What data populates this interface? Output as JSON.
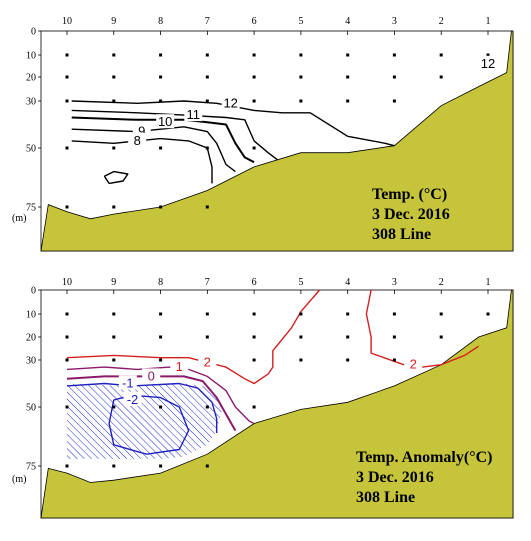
{
  "chart_data": [
    {
      "type": "contour",
      "title": "Temp. (°C)",
      "date": "3 Dec. 2016",
      "line": "308 Line",
      "colors": {
        "seabed": "#c6c43a",
        "contour": "#000000"
      },
      "stations": [
        "10",
        "9",
        "8",
        "7",
        "6",
        "5",
        "4",
        "3",
        "2",
        "1"
      ],
      "depth_ticks": [
        "0",
        "10",
        "20",
        "30",
        "50",
        "75"
      ],
      "depth_values": [
        0,
        10,
        20,
        30,
        50,
        75
      ],
      "depth_unit": "(m)",
      "ylim": [
        0,
        85
      ],
      "sample_points": [
        {
          "station": "10",
          "depths": [
            10,
            20,
            30,
            50,
            75
          ]
        },
        {
          "station": "9",
          "depths": [
            10,
            20,
            30,
            50,
            75
          ]
        },
        {
          "station": "8",
          "depths": [
            10,
            20,
            30,
            50,
            75
          ]
        },
        {
          "station": "7",
          "depths": [
            10,
            20,
            30,
            50,
            75
          ]
        },
        {
          "station": "6",
          "depths": [
            10,
            20,
            30,
            50
          ]
        },
        {
          "station": "5",
          "depths": [
            10,
            20,
            30
          ]
        },
        {
          "station": "4",
          "depths": [
            10,
            20,
            30
          ]
        },
        {
          "station": "3",
          "depths": [
            10,
            20,
            30
          ]
        },
        {
          "station": "2",
          "depths": [
            10,
            20
          ]
        },
        {
          "station": "1",
          "depths": [
            10
          ]
        }
      ],
      "contours": [
        {
          "label": "12",
          "points": [
            [
              9.9,
              30
            ],
            [
              8.5,
              31
            ],
            [
              7.5,
              30
            ],
            [
              6.8,
              31
            ],
            [
              6.0,
              34
            ],
            [
              5.4,
              35
            ],
            [
              4.8,
              35
            ],
            [
              4.0,
              45
            ],
            [
              3.2,
              48
            ],
            [
              3.0,
              49
            ]
          ]
        },
        {
          "label": "11",
          "points": [
            [
              9.9,
              34
            ],
            [
              8.5,
              35
            ],
            [
              7.5,
              36
            ],
            [
              6.6,
              37
            ],
            [
              6.2,
              38
            ],
            [
              6.0,
              47
            ],
            [
              5.7,
              52
            ],
            [
              5.5,
              55
            ]
          ]
        },
        {
          "label": "10",
          "points": [
            [
              9.9,
              37
            ],
            [
              8.5,
              38
            ],
            [
              7.5,
              38
            ],
            [
              7.0,
              39
            ],
            [
              6.6,
              40
            ],
            [
              6.4,
              48
            ],
            [
              6.2,
              54
            ],
            [
              6.0,
              56
            ]
          ]
        },
        {
          "label": "9",
          "points": [
            [
              9.9,
              42
            ],
            [
              8.5,
              43
            ],
            [
              7.5,
              41
            ],
            [
              7.0,
              43
            ],
            [
              6.8,
              48
            ],
            [
              6.6,
              57
            ],
            [
              6.4,
              60
            ]
          ]
        },
        {
          "label": "8",
          "points": [
            [
              9.9,
              47
            ],
            [
              9.0,
              48
            ],
            [
              8.0,
              46
            ],
            [
              7.4,
              47
            ],
            [
              7.0,
              50
            ],
            [
              6.9,
              58
            ],
            [
              6.9,
              65
            ]
          ]
        },
        {
          "label": "",
          "points": [
            [
              9.2,
              62
            ],
            [
              9.0,
              60
            ],
            [
              8.7,
              61
            ],
            [
              8.8,
              64
            ],
            [
              9.1,
              65
            ],
            [
              9.2,
              62
            ]
          ]
        }
      ],
      "contour_labels": [
        {
          "text": "12",
          "station_pos": 6.5,
          "depth": 31
        },
        {
          "text": "11",
          "station_pos": 7.3,
          "depth": 36
        },
        {
          "text": "10",
          "station_pos": 7.9,
          "depth": 39
        },
        {
          "text": "9",
          "station_pos": 8.4,
          "depth": 43
        },
        {
          "text": "8",
          "station_pos": 8.5,
          "depth": 47
        },
        {
          "text": "12",
          "station_pos": 1.0,
          "depth": 14
        }
      ],
      "seabed": [
        [
          10.4,
          74
        ],
        [
          10.0,
          77
        ],
        [
          9.5,
          80
        ],
        [
          9.0,
          78
        ],
        [
          8.0,
          75
        ],
        [
          7.0,
          68
        ],
        [
          6.0,
          58
        ],
        [
          5.0,
          52
        ],
        [
          4.0,
          52
        ],
        [
          3.0,
          49
        ],
        [
          2.0,
          32
        ],
        [
          1.2,
          24
        ],
        [
          0.6,
          18
        ],
        [
          0.5,
          0
        ]
      ]
    },
    {
      "type": "contour",
      "title": "Temp. Anomaly(°C)",
      "date": "3 Dec. 2016",
      "line": "308 Line",
      "colors": {
        "seabed": "#c6c43a",
        "positive": "#d42020",
        "zero": "#8b1a6b",
        "negative": "#2020c0",
        "hatch": "#1a2adb"
      },
      "stations": [
        "10",
        "9",
        "8",
        "7",
        "6",
        "5",
        "4",
        "3",
        "2",
        "1"
      ],
      "depth_ticks": [
        "0",
        "10",
        "20",
        "30",
        "50",
        "75"
      ],
      "depth_values": [
        0,
        10,
        20,
        30,
        50,
        75
      ],
      "depth_unit": "(m)",
      "ylim": [
        0,
        85
      ],
      "sample_points": [
        {
          "station": "10",
          "depths": [
            10,
            20,
            30,
            50,
            75
          ]
        },
        {
          "station": "9",
          "depths": [
            10,
            20,
            30,
            50,
            75
          ]
        },
        {
          "station": "8",
          "depths": [
            10,
            20,
            30,
            50,
            75
          ]
        },
        {
          "station": "7",
          "depths": [
            10,
            20,
            30,
            50,
            75
          ]
        },
        {
          "station": "6",
          "depths": [
            10,
            20,
            30,
            50
          ]
        },
        {
          "station": "5",
          "depths": [
            10,
            20,
            30
          ]
        },
        {
          "station": "4",
          "depths": [
            10,
            20,
            30
          ]
        },
        {
          "station": "3",
          "depths": [
            10,
            20,
            30
          ]
        },
        {
          "station": "2",
          "depths": [
            10,
            20
          ]
        },
        {
          "station": "1",
          "depths": [
            10
          ]
        }
      ],
      "shaded_region": {
        "condition": "below -1",
        "points": [
          [
            10.0,
            40
          ],
          [
            8.8,
            41
          ],
          [
            7.5,
            40
          ],
          [
            7.1,
            41
          ],
          [
            6.8,
            45
          ],
          [
            6.7,
            52
          ],
          [
            6.8,
            60
          ],
          [
            7.0,
            66
          ],
          [
            7.5,
            71
          ],
          [
            8.0,
            72
          ],
          [
            10.0,
            72
          ],
          [
            10.0,
            40
          ]
        ]
      },
      "contours": [
        {
          "label": "2",
          "color": "#d42020",
          "points": [
            [
              10.0,
              29
            ],
            [
              9.0,
              28
            ],
            [
              8.0,
              29
            ],
            [
              7.4,
              29
            ],
            [
              7.0,
              31
            ],
            [
              6.6,
              33
            ],
            [
              6.2,
              38
            ],
            [
              6.0,
              40
            ],
            [
              5.7,
              36
            ],
            [
              5.6,
              33
            ],
            [
              5.6,
              26
            ],
            [
              5.2,
              16
            ],
            [
              5.0,
              9
            ],
            [
              4.6,
              0
            ]
          ]
        },
        {
          "label": "2",
          "color": "#d42020",
          "points": [
            [
              3.5,
              0
            ],
            [
              3.6,
              10
            ],
            [
              3.5,
              20
            ],
            [
              3.5,
              27
            ],
            [
              2.8,
              32
            ],
            [
              2.4,
              33
            ],
            [
              2.0,
              32
            ],
            [
              1.5,
              28
            ],
            [
              1.2,
              24
            ]
          ]
        },
        {
          "label": "1",
          "color": "#8b1a6b",
          "points": [
            [
              10.0,
              34
            ],
            [
              9.2,
              33
            ],
            [
              8.5,
              34
            ],
            [
              7.8,
              33
            ],
            [
              7.4,
              34
            ],
            [
              7.0,
              37
            ],
            [
              6.6,
              43
            ],
            [
              6.4,
              50
            ],
            [
              6.1,
              56
            ],
            [
              6.0,
              57
            ]
          ]
        },
        {
          "label": "0",
          "color": "#8b1a6b",
          "points": [
            [
              10.0,
              38
            ],
            [
              9.2,
              37
            ],
            [
              8.5,
              37
            ],
            [
              7.5,
              37
            ],
            [
              7.1,
              39
            ],
            [
              6.8,
              46
            ],
            [
              6.6,
              53
            ],
            [
              6.4,
              60
            ]
          ]
        },
        {
          "label": "-1",
          "color": "#2020c0",
          "points": [
            [
              10.0,
              41
            ],
            [
              9.2,
              40
            ],
            [
              8.6,
              41
            ],
            [
              7.6,
              40
            ],
            [
              7.2,
              42
            ],
            [
              6.9,
              48
            ],
            [
              6.8,
              55
            ],
            [
              6.8,
              61
            ]
          ]
        },
        {
          "label": "-2",
          "color": "#2020c0",
          "points": [
            [
              9.0,
              47
            ],
            [
              8.6,
              45
            ],
            [
              8.0,
              46
            ],
            [
              7.6,
              50
            ],
            [
              7.4,
              60
            ],
            [
              7.6,
              68
            ],
            [
              8.3,
              70
            ],
            [
              9.0,
              66
            ],
            [
              9.1,
              57
            ],
            [
              9.0,
              47
            ]
          ]
        }
      ],
      "contour_labels": [
        {
          "text": "2",
          "station_pos": 7.0,
          "depth": 31
        },
        {
          "text": "1",
          "station_pos": 7.6,
          "depth": 33
        },
        {
          "text": "0",
          "station_pos": 8.2,
          "depth": 37
        },
        {
          "text": "-1",
          "station_pos": 8.7,
          "depth": 40
        },
        {
          "text": "-2",
          "station_pos": 8.6,
          "depth": 47
        },
        {
          "text": "2",
          "station_pos": 2.6,
          "depth": 32
        }
      ],
      "seabed": [
        [
          10.4,
          76
        ],
        [
          10.0,
          78
        ],
        [
          9.5,
          82
        ],
        [
          9.0,
          81
        ],
        [
          8.0,
          78
        ],
        [
          7.0,
          70
        ],
        [
          6.0,
          57
        ],
        [
          5.0,
          51
        ],
        [
          4.0,
          48
        ],
        [
          3.0,
          41
        ],
        [
          2.0,
          32
        ],
        [
          1.2,
          20
        ],
        [
          0.6,
          16
        ],
        [
          0.5,
          0
        ]
      ]
    }
  ]
}
